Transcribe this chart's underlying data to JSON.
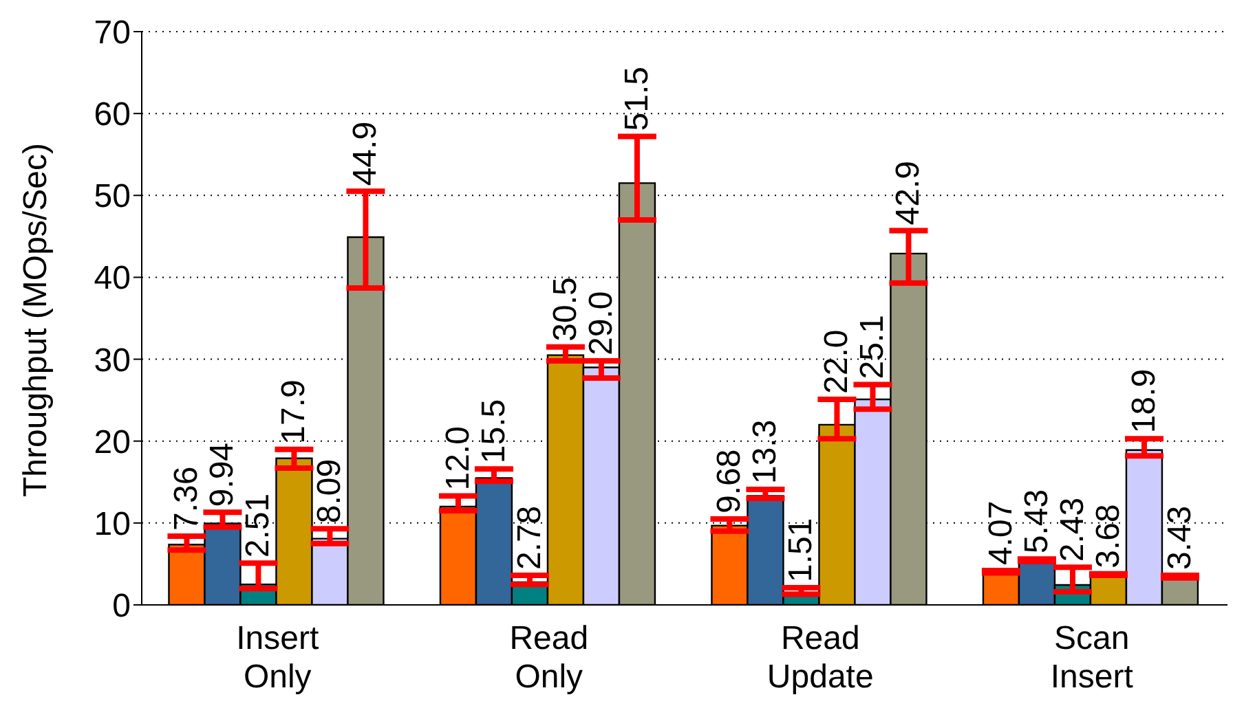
{
  "chart_data": {
    "type": "bar",
    "ylabel": "Throughput (MOps/Sec)",
    "categories": [
      "Insert Only",
      "Read Only",
      "Read Update",
      "Scan Insert"
    ],
    "series": [
      {
        "color": "#ff6600",
        "values": [
          7.36,
          12.0,
          9.68,
          4.07
        ],
        "value_labels": [
          "7.36",
          "12.0",
          "9.68",
          "4.07"
        ],
        "errors": [
          [
            6.7,
            8.4
          ],
          [
            11.5,
            13.3
          ],
          [
            9.0,
            10.5
          ],
          [
            3.9,
            4.2
          ]
        ]
      },
      {
        "color": "#336699",
        "values": [
          9.94,
          15.5,
          13.3,
          5.43
        ],
        "value_labels": [
          "9.94",
          "15.5",
          "13.3",
          "5.43"
        ],
        "errors": [
          [
            9.5,
            11.3
          ],
          [
            15.1,
            16.6
          ],
          [
            13.0,
            14.1
          ],
          [
            5.3,
            5.6
          ]
        ]
      },
      {
        "color": "#008080",
        "values": [
          2.51,
          2.78,
          1.51,
          2.43
        ],
        "value_labels": [
          "2.51",
          "2.78",
          "1.51",
          "2.43"
        ],
        "errors": [
          [
            2.0,
            5.1
          ],
          [
            2.5,
            3.6
          ],
          [
            1.3,
            2.1
          ],
          [
            1.6,
            4.6
          ]
        ]
      },
      {
        "color": "#cc9900",
        "values": [
          17.9,
          30.5,
          22.0,
          3.68
        ],
        "value_labels": [
          "17.9",
          "30.5",
          "22.0",
          "3.68"
        ],
        "errors": [
          [
            16.7,
            19.0
          ],
          [
            29.8,
            31.5
          ],
          [
            20.3,
            25.1
          ],
          [
            3.6,
            3.8
          ]
        ]
      },
      {
        "color": "#ccccff",
        "values": [
          8.09,
          29.0,
          25.1,
          18.9
        ],
        "value_labels": [
          "8.09",
          "29.0",
          "25.1",
          "18.9"
        ],
        "errors": [
          [
            7.5,
            9.3
          ],
          [
            27.7,
            29.8
          ],
          [
            23.9,
            26.9
          ],
          [
            18.2,
            20.3
          ]
        ]
      },
      {
        "color": "#999980",
        "values": [
          44.9,
          51.5,
          42.9,
          3.43
        ],
        "value_labels": [
          "44.9",
          "51.5",
          "42.9",
          "3.43"
        ],
        "errors": [
          [
            38.7,
            50.5
          ],
          [
            47.0,
            57.2
          ],
          [
            39.3,
            45.7
          ],
          [
            3.3,
            3.6
          ]
        ]
      }
    ],
    "ylim": [
      0,
      70
    ],
    "yticks": [
      0,
      10,
      20,
      30,
      40,
      50,
      60,
      70
    ],
    "grid": "y"
  }
}
